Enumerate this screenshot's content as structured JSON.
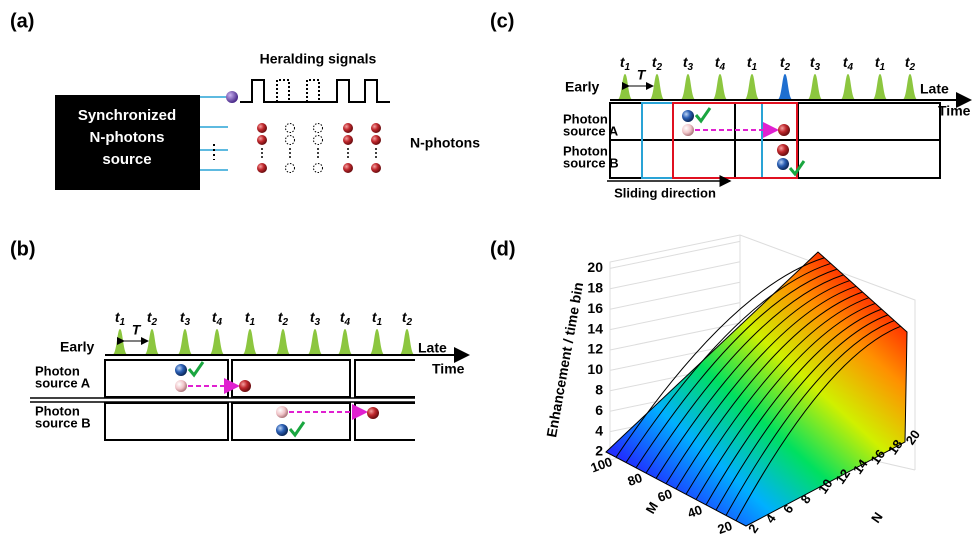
{
  "a": {
    "label": "(a)",
    "source": [
      "Synchronized",
      "N-photons",
      "source"
    ],
    "heralding": "Heralding signals",
    "photons": "N-photons"
  },
  "b": {
    "label": "(b)",
    "times": [
      "t1",
      "t2",
      "t3",
      "t4",
      "t1",
      "t2",
      "t3",
      "t4",
      "t1",
      "t2"
    ],
    "period": "T",
    "early": "Early",
    "late": "Late",
    "time": "Time",
    "source_a": [
      "Photon",
      "source A"
    ],
    "source_b": [
      "Photon",
      "source B"
    ]
  },
  "c": {
    "label": "(c)",
    "times": [
      "t1",
      "t2",
      "t3",
      "t4",
      "t1",
      "t2",
      "t3",
      "t4",
      "t1",
      "t2"
    ],
    "period": "T",
    "early": "Early",
    "late": "Late",
    "time": "Time",
    "source_a": [
      "Photon",
      "source A"
    ],
    "source_b": [
      "Photon",
      "source B"
    ],
    "sliding": "Sliding direction"
  },
  "d": {
    "label": "(d)",
    "y_label": "Enhancement / time bin",
    "yticks": [
      2,
      4,
      6,
      8,
      10,
      12,
      14,
      16,
      18,
      20
    ],
    "x_label": "M",
    "xticks": [
      100,
      80,
      60,
      40,
      20
    ],
    "z_label": "N",
    "zticks": [
      2,
      4,
      6,
      8,
      10,
      12,
      14,
      16,
      18,
      20
    ]
  }
}
